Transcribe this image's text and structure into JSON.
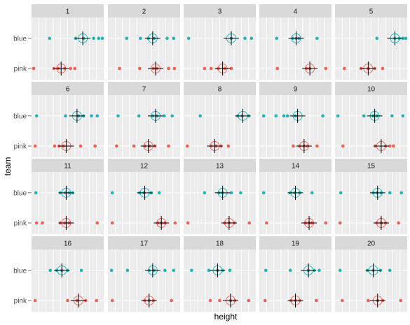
{
  "chart_data": {
    "type": "scatter",
    "xlabel": "height",
    "ylabel": "team",
    "xlim": [
      0,
      10
    ],
    "categories": [
      "blue",
      "pink"
    ],
    "colors": {
      "blue": "#1fb5b8",
      "pink": "#f0605a"
    },
    "grid": true,
    "panels": [
      {
        "label": "1",
        "blue": [
          2.5,
          6.1,
          7.2,
          8.6,
          9.3,
          9.8
        ],
        "pink": [
          0.3,
          3.1,
          3.7,
          4.6,
          5.4,
          6.0
        ],
        "blue_mean": 7.1,
        "pink_mean": 4.1
      },
      {
        "label": "2",
        "blue": [
          2.6,
          4.5,
          5.6,
          6.4,
          8.2,
          9.1
        ],
        "pink": [
          1.6,
          4.4,
          6.3,
          6.8,
          8.4,
          9.2
        ],
        "blue_mean": 6.2,
        "pink_mean": 6.6
      },
      {
        "label": "3",
        "blue": [
          0.7,
          6.6,
          8.5,
          9.4
        ],
        "pink": [
          2.9,
          3.8,
          4.8,
          5.7,
          6.6
        ],
        "blue_mean": 6.6,
        "pink_mean": 5.4
      },
      {
        "label": "4",
        "blue": [
          2.4,
          4.6,
          5.1,
          5.5,
          8.0
        ],
        "pink": [
          2.5,
          6.5,
          7.0,
          9.2
        ],
        "blue_mean": 5.1,
        "pink_mean": 7.0
      },
      {
        "label": "5",
        "blue": [
          5.8,
          8.3,
          8.9,
          9.4,
          9.8
        ],
        "pink": [
          1.3,
          3.6,
          4.6,
          5.5,
          6.6
        ],
        "blue_mean": 8.3,
        "pink_mean": 4.6
      },
      {
        "label": "6",
        "blue": [
          0.7,
          4.7,
          6.5,
          7.2,
          8.3,
          9.1
        ],
        "pink": [
          0.5,
          3.2,
          3.8,
          4.4,
          6.8,
          8.8
        ],
        "blue_mean": 6.3,
        "pink_mean": 4.8
      },
      {
        "label": "7",
        "blue": [
          1.4,
          4.3,
          6.2,
          6.8,
          7.8,
          8.9
        ],
        "pink": [
          1.2,
          3.6,
          5.1,
          5.8,
          6.5,
          8.4
        ],
        "blue_mean": 6.6,
        "pink_mean": 5.6
      },
      {
        "label": "8",
        "blue": [
          2.3,
          7.5,
          8.1,
          9.0
        ],
        "pink": [
          0.5,
          3.8,
          4.5,
          5.2,
          6.2
        ],
        "blue_mean": 8.2,
        "pink_mean": 4.3
      },
      {
        "label": "9",
        "blue": [
          0.6,
          2.3,
          3.4,
          3.9,
          5.0,
          8.8
        ],
        "pink": [
          4.7,
          5.6,
          6.2,
          6.7,
          8.0
        ],
        "blue_mean": 5.3,
        "pink_mean": 6.2
      },
      {
        "label": "10",
        "blue": [
          0.4,
          4.0,
          5.3,
          5.8,
          7.9,
          9.4
        ],
        "pink": [
          1.1,
          5.6,
          7.0,
          7.6,
          8.1
        ],
        "blue_mean": 5.5,
        "pink_mean": 6.4
      },
      {
        "label": "11",
        "blue": [
          0.6,
          4.0,
          4.7,
          5.2,
          5.7
        ],
        "pink": [
          0.7,
          1.5,
          4.0,
          4.6,
          5.2,
          9.1
        ],
        "blue_mean": 4.8,
        "pink_mean": 4.8
      },
      {
        "label": "12",
        "blue": [
          0.6,
          4.4,
          5.0,
          6.0,
          7.1
        ],
        "pink": [
          0.6,
          6.9,
          7.4,
          7.9,
          9.3
        ],
        "blue_mean": 5.1,
        "pink_mean": 7.4
      },
      {
        "label": "13",
        "blue": [
          2.9,
          4.9,
          5.4,
          6.6,
          7.9
        ],
        "pink": [
          0.6,
          5.7,
          6.3,
          7.0,
          9.1
        ],
        "blue_mean": 5.4,
        "pink_mean": 6.3
      },
      {
        "label": "14",
        "blue": [
          0.6,
          4.3,
          4.9,
          5.6,
          7.3
        ],
        "pink": [
          1.0,
          6.4,
          6.9,
          7.3,
          9.2
        ],
        "blue_mean": 5.0,
        "pink_mean": 6.9
      },
      {
        "label": "15",
        "blue": [
          0.8,
          5.3,
          5.8,
          6.4,
          7.6,
          9.2
        ],
        "pink": [
          0.7,
          5.8,
          6.4,
          7.0,
          8.8
        ],
        "blue_mean": 5.9,
        "pink_mean": 6.4
      },
      {
        "label": "16",
        "blue": [
          2.6,
          3.5,
          4.2,
          5.0,
          6.9
        ],
        "pink": [
          0.5,
          5.0,
          6.3,
          7.5,
          9.0
        ],
        "blue_mean": 4.2,
        "pink_mean": 6.5
      },
      {
        "label": "17",
        "blue": [
          0.5,
          2.7,
          5.7,
          6.4,
          7.9,
          9.1
        ],
        "pink": [
          0.6,
          5.1,
          5.7,
          6.3,
          8.8
        ],
        "blue_mean": 6.2,
        "pink_mean": 5.7
      },
      {
        "label": "18",
        "blue": [
          1.1,
          3.5,
          4.7,
          5.4,
          6.4
        ],
        "pink": [
          3.7,
          5.0,
          6.5,
          7.1,
          9.0
        ],
        "blue_mean": 4.7,
        "pink_mean": 6.5
      },
      {
        "label": "19",
        "blue": [
          0.9,
          4.3,
          6.8,
          7.6,
          8.3
        ],
        "pink": [
          0.8,
          4.4,
          5.0,
          5.6,
          7.9
        ],
        "blue_mean": 6.8,
        "pink_mean": 5.0
      },
      {
        "label": "20",
        "blue": [
          0.7,
          4.5,
          5.3,
          6.3,
          7.6
        ],
        "pink": [
          1.0,
          4.6,
          5.9,
          6.6,
          9.1
        ],
        "blue_mean": 5.3,
        "pink_mean": 5.9
      }
    ]
  }
}
